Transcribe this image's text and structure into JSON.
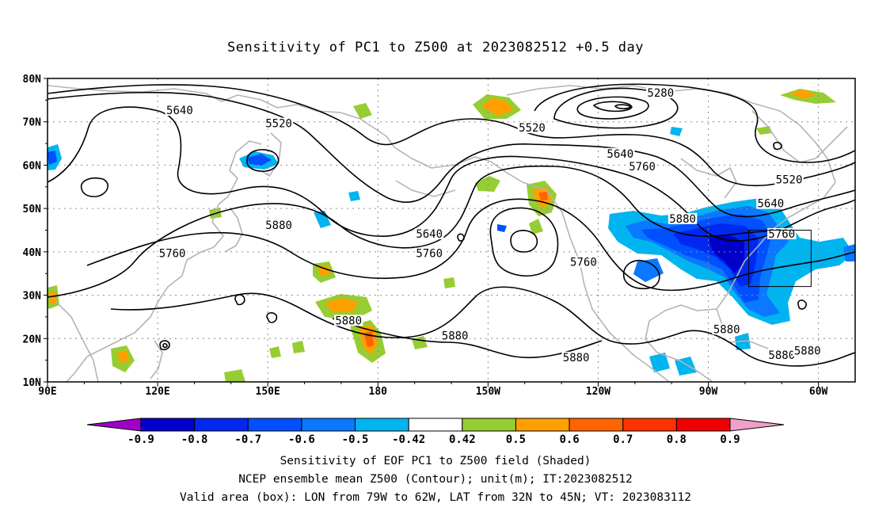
{
  "title": "Sensitivity of PC1 to Z500 at 2023082512 +0.5 day",
  "map": {
    "lat_labels": [
      "80N",
      "70N",
      "60N",
      "50N",
      "40N",
      "30N",
      "20N",
      "10N"
    ],
    "lon_labels": [
      "90E",
      "120E",
      "150E",
      "180",
      "150W",
      "120W",
      "90W",
      "60W"
    ],
    "lon_range_deg_east": [
      90,
      310
    ],
    "lat_range_deg_north": [
      10,
      80
    ],
    "grid": "dotted",
    "coastline_color": "#b4b4b4",
    "contour_color": "#000000",
    "contour_labels": [
      {
        "text": "5280",
        "lon": 257,
        "lat": 76.5
      },
      {
        "text": "5520",
        "lon": 153,
        "lat": 69.5
      },
      {
        "text": "5520",
        "lon": 222,
        "lat": 68.5
      },
      {
        "text": "5520",
        "lon": 292,
        "lat": 56.5
      },
      {
        "text": "5640",
        "lon": 126,
        "lat": 72.5
      },
      {
        "text": "5640",
        "lon": 246,
        "lat": 62.5
      },
      {
        "text": "5640",
        "lon": 194,
        "lat": 44
      },
      {
        "text": "5640",
        "lon": 287,
        "lat": 51
      },
      {
        "text": "5760",
        "lon": 252,
        "lat": 59.5
      },
      {
        "text": "5760",
        "lon": 194,
        "lat": 39.5
      },
      {
        "text": "5760",
        "lon": 236,
        "lat": 37.5
      },
      {
        "text": "5760",
        "lon": 290,
        "lat": 44
      },
      {
        "text": "5760",
        "lon": 124,
        "lat": 39.5
      },
      {
        "text": "5880",
        "lon": 153,
        "lat": 46
      },
      {
        "text": "5880",
        "lon": 263,
        "lat": 47.5
      },
      {
        "text": "5880",
        "lon": 172,
        "lat": 24
      },
      {
        "text": "5880",
        "lon": 201,
        "lat": 20.5
      },
      {
        "text": "5880",
        "lon": 234,
        "lat": 15.5
      },
      {
        "text": "5880",
        "lon": 275,
        "lat": 22
      },
      {
        "text": "5880",
        "lon": 290,
        "lat": 16
      },
      {
        "text": "5880",
        "lon": 297,
        "lat": 17
      }
    ],
    "valid_box": {
      "lon_west": 281,
      "lon_east": 298,
      "lat_south": 32,
      "lat_north": 45
    }
  },
  "colorbar": {
    "labels": [
      "-0.9",
      "-0.8",
      "-0.7",
      "-0.6",
      "-0.5",
      "-0.42",
      "0.42",
      "0.5",
      "0.6",
      "0.7",
      "0.8",
      "0.9"
    ],
    "colors": [
      "#a000c8",
      "#0000c8",
      "#0028f0",
      "#0050ff",
      "#0a78ff",
      "#00b4f0",
      "#ffffff",
      "#96cd32",
      "#ffa000",
      "#ff6400",
      "#ff3200",
      "#f00000",
      "#f0a0c8"
    ],
    "range": [
      -0.9,
      0.9
    ]
  },
  "captions": [
    "Sensitivity of EOF PC1 to Z500 field (Shaded)",
    "NCEP ensemble mean Z500 (Contour); unit(m); IT:2023082512",
    "Valid area (box): LON from 79W to 62W, LAT from 32N to 45N; VT: 2023083112"
  ]
}
